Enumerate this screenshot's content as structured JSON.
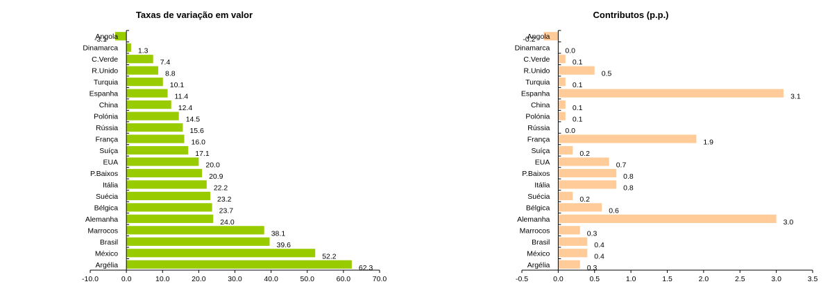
{
  "colors": {
    "left_bars": "#99cc00",
    "right_bars": "#ffcc99"
  },
  "chart_data": [
    {
      "type": "bar",
      "orientation": "horizontal",
      "title": "Taxas de variação em valor",
      "categories": [
        "Angola",
        "Dinamarca",
        "C.Verde",
        "R.Unido",
        "Turquia",
        "Espanha",
        "China",
        "Polónia",
        "Rússia",
        "França",
        "Suíça",
        "EUA",
        "P.Baixos",
        "Itália",
        "Suécia",
        "Bélgica",
        "Alemanha",
        "Marrocos",
        "Brasil",
        "México",
        "Argélia"
      ],
      "values": [
        -3.1,
        1.3,
        7.4,
        8.8,
        10.1,
        11.4,
        12.4,
        14.5,
        15.6,
        16.0,
        17.1,
        20.0,
        20.9,
        22.2,
        23.2,
        23.7,
        24.0,
        38.1,
        39.6,
        52.2,
        62.3
      ],
      "labels": [
        "-3.1",
        "1.3",
        "7.4",
        "8.8",
        "10.1",
        "11.4",
        "12.4",
        "14.5",
        "15.6",
        "16.0",
        "17.1",
        "20.0",
        "20.9",
        "22.2",
        "23.2",
        "23.7",
        "24.0",
        "38.1",
        "39.6",
        "52.2",
        "62.3"
      ],
      "xlim": [
        -10,
        70
      ],
      "ticks": [
        "-10.0",
        "0.0",
        "10.0",
        "20.0",
        "30.0",
        "40.0",
        "50.0",
        "60.0",
        "70.0"
      ],
      "tick_values": [
        -10,
        0,
        10,
        20,
        30,
        40,
        50,
        60,
        70
      ],
      "grid": false,
      "legend": "none"
    },
    {
      "type": "bar",
      "orientation": "horizontal",
      "title": "Contributos (p.p.)",
      "categories": [
        "Angola",
        "Dinamarca",
        "C.Verde",
        "R.Unido",
        "Turquia",
        "Espanha",
        "China",
        "Polónia",
        "Rússia",
        "França",
        "Suíça",
        "EUA",
        "P.Baixos",
        "Itália",
        "Suécia",
        "Bélgica",
        "Alemanha",
        "Marrocos",
        "Brasil",
        "México",
        "Argélia"
      ],
      "values": [
        -0.2,
        0.0,
        0.1,
        0.5,
        0.1,
        3.1,
        0.1,
        0.1,
        0.0,
        1.9,
        0.2,
        0.7,
        0.8,
        0.8,
        0.2,
        0.6,
        3.0,
        0.3,
        0.4,
        0.4,
        0.3
      ],
      "labels": [
        "-0.2",
        "0.0",
        "0.1",
        "0.5",
        "0.1",
        "3.1",
        "0.1",
        "0.1",
        "0.0",
        "1.9",
        "0.2",
        "0.7",
        "0.8",
        "0.8",
        "0.2",
        "0.6",
        "3.0",
        "0.3",
        "0.4",
        "0.4",
        "0.3"
      ],
      "xlim": [
        -0.5,
        3.5
      ],
      "ticks": [
        "-0.5",
        "0.0",
        "0.5",
        "1.0",
        "1.5",
        "2.0",
        "2.5",
        "3.0",
        "3.5"
      ],
      "tick_values": [
        -0.5,
        0,
        0.5,
        1,
        1.5,
        2,
        2.5,
        3,
        3.5
      ],
      "grid": false,
      "legend": "none"
    }
  ]
}
